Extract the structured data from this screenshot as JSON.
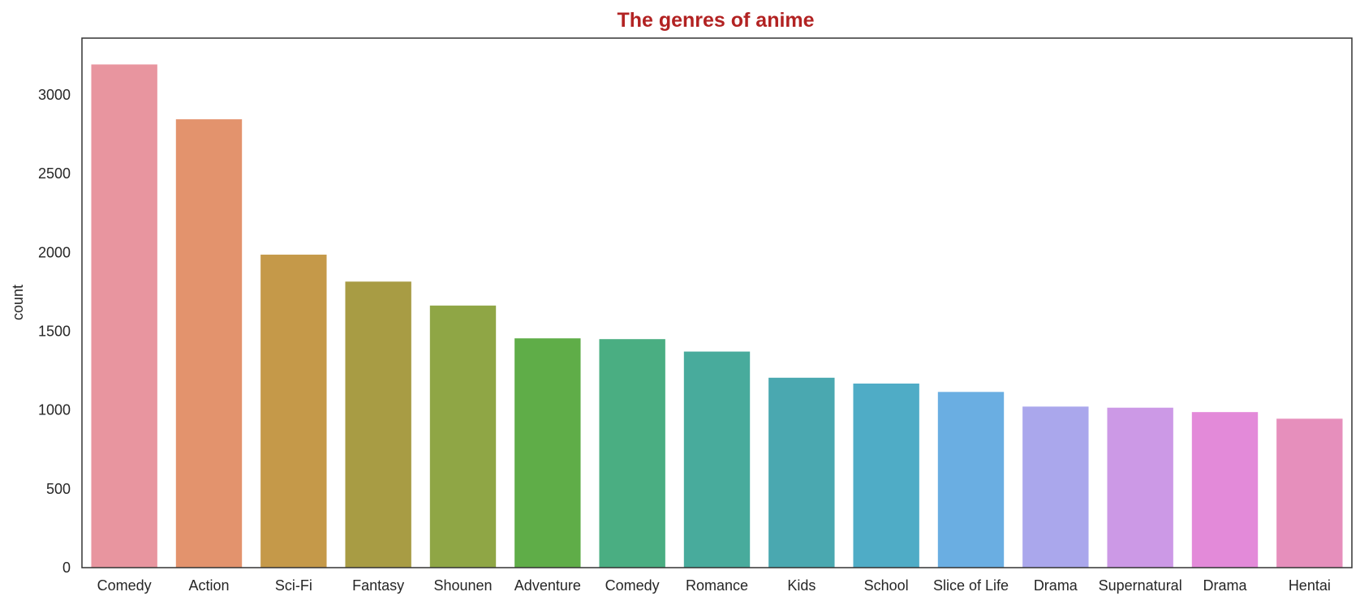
{
  "chart_data": {
    "type": "bar",
    "title": "The genres of anime",
    "xlabel": "",
    "ylabel": "count",
    "categories": [
      "Comedy",
      "Action",
      "Sci-Fi",
      "Fantasy",
      "Shounen",
      "Adventure",
      "Comedy",
      "Romance",
      "Kids",
      "School",
      "Slice of Life",
      "Drama",
      "Supernatural",
      "Drama",
      "Hentai"
    ],
    "values": [
      3193,
      2845,
      1986,
      1815,
      1663,
      1455,
      1450,
      1371,
      1205,
      1168,
      1115,
      1022,
      1015,
      987,
      945
    ],
    "colors": [
      "#e8959f",
      "#e3936d",
      "#c59949",
      "#a89c44",
      "#8fa645",
      "#5fad48",
      "#4aae82",
      "#48ab9c",
      "#4aa8b0",
      "#4facc6",
      "#6aaee2",
      "#aaa7ec",
      "#cc99e6",
      "#e38ad9",
      "#e68fbc"
    ],
    "ylim": [
      0,
      3360
    ],
    "yticks": [
      0,
      500,
      1000,
      1500,
      2000,
      2500,
      3000
    ],
    "grid": false,
    "legend": "none"
  }
}
